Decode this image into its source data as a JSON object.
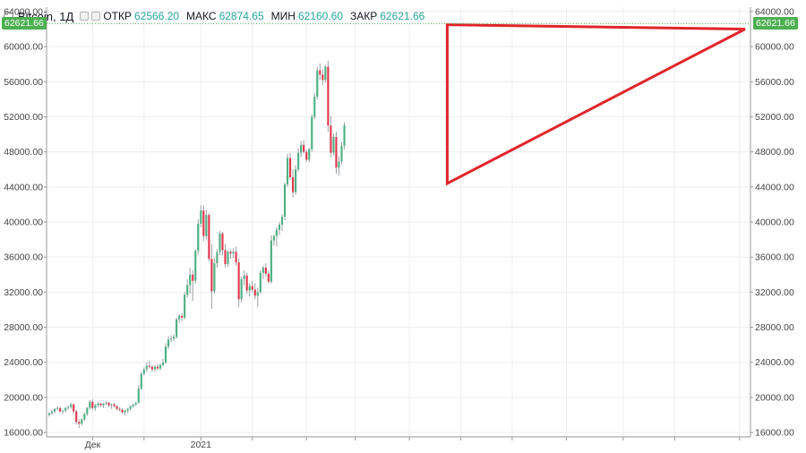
{
  "legend": {
    "symbol": "Bitcoin",
    "interval": "1Д",
    "open_label": "ОТКР",
    "open_value": "62566.20",
    "high_label": "МАКС",
    "high_value": "62874.65",
    "low_label": "МИН",
    "low_value": "62160.60",
    "close_label": "ЗАКР",
    "close_value": "62621.66"
  },
  "last_price_tag": "62621.66",
  "colors": {
    "up": "#4caf82",
    "down": "#e0364a",
    "wick": "#9aa0a6",
    "grid": "#eeeeee",
    "axis": "#999999",
    "triangle": "#e0252b",
    "price_tag": "#4caf50"
  },
  "chart_data": {
    "type": "candlestick",
    "title": "",
    "xlabel": "",
    "ylabel": "",
    "ylim": [
      15500,
      64500
    ],
    "y_ticks": [
      "16000.00",
      "20000.00",
      "24000.00",
      "28000.00",
      "32000.00",
      "36000.00",
      "40000.00",
      "44000.00",
      "48000.00",
      "52000.00",
      "56000.00",
      "60000.00",
      "64000.00"
    ],
    "y_tick_values": [
      16000,
      20000,
      24000,
      28000,
      32000,
      36000,
      40000,
      44000,
      48000,
      52000,
      56000,
      60000,
      64000
    ],
    "x_labels": [
      {
        "text": "Дек",
        "index": 16
      },
      {
        "text": "2021",
        "index": 56
      }
    ],
    "x_ticks_index": [
      16,
      35,
      56,
      75,
      95,
      113,
      133,
      152,
      171,
      191,
      212,
      231,
      255
    ],
    "last_close": 62621.66,
    "grid": true,
    "annotation": {
      "type": "triangle",
      "points": [
        {
          "index": 147,
          "price": 62500
        },
        {
          "index": 147,
          "price": 44400
        },
        {
          "index": 257,
          "price": 62000
        }
      ]
    },
    "candles": [
      [
        18000,
        18300,
        17800,
        18200
      ],
      [
        18200,
        18600,
        18000,
        18400
      ],
      [
        18400,
        18800,
        18200,
        18700
      ],
      [
        18700,
        19000,
        18500,
        18800
      ],
      [
        18800,
        18900,
        18300,
        18400
      ],
      [
        18400,
        18600,
        18100,
        18500
      ],
      [
        18500,
        18900,
        18300,
        18800
      ],
      [
        18800,
        19100,
        18600,
        18900
      ],
      [
        18900,
        19400,
        18700,
        19200
      ],
      [
        19200,
        19300,
        18200,
        18400
      ],
      [
        18400,
        18600,
        16900,
        17200
      ],
      [
        17200,
        17500,
        16500,
        17000
      ],
      [
        17000,
        17600,
        16800,
        17500
      ],
      [
        17500,
        18300,
        17300,
        18100
      ],
      [
        18100,
        18900,
        17900,
        18800
      ],
      [
        18800,
        19700,
        18600,
        19500
      ],
      [
        19500,
        19800,
        18600,
        18800
      ],
      [
        18800,
        19300,
        18500,
        19100
      ],
      [
        19100,
        19500,
        18900,
        19300
      ],
      [
        19300,
        19400,
        18900,
        19100
      ],
      [
        19100,
        19400,
        18800,
        19300
      ],
      [
        19300,
        19600,
        19100,
        19400
      ],
      [
        19400,
        19500,
        18900,
        19100
      ],
      [
        19100,
        19300,
        18700,
        19200
      ],
      [
        19200,
        19400,
        18900,
        19000
      ],
      [
        19000,
        19100,
        18500,
        18700
      ],
      [
        18700,
        18900,
        18400,
        18600
      ],
      [
        18600,
        18800,
        18100,
        18300
      ],
      [
        18300,
        18600,
        17900,
        18500
      ],
      [
        18500,
        18800,
        18200,
        18700
      ],
      [
        18700,
        19100,
        18500,
        19000
      ],
      [
        19000,
        19300,
        18800,
        19200
      ],
      [
        19200,
        19500,
        19000,
        19400
      ],
      [
        19400,
        21400,
        19300,
        21000
      ],
      [
        21000,
        22900,
        20800,
        22700
      ],
      [
        22700,
        23400,
        22500,
        23200
      ],
      [
        23200,
        24000,
        22900,
        23600
      ],
      [
        23600,
        24200,
        23300,
        23500
      ],
      [
        23500,
        23700,
        22900,
        23200
      ],
      [
        23200,
        23700,
        22900,
        23500
      ],
      [
        23500,
        23800,
        23100,
        23300
      ],
      [
        23300,
        23900,
        23100,
        23700
      ],
      [
        23700,
        24400,
        23500,
        24000
      ],
      [
        24000,
        26200,
        23800,
        25800
      ],
      [
        25800,
        27000,
        25500,
        26600
      ],
      [
        26600,
        27100,
        26300,
        26700
      ],
      [
        26700,
        27200,
        26400,
        26900
      ],
      [
        26900,
        29100,
        26700,
        28900
      ],
      [
        28900,
        29500,
        28500,
        29300
      ],
      [
        29300,
        29600,
        28700,
        29100
      ],
      [
        29100,
        32000,
        28900,
        31700
      ],
      [
        31700,
        33500,
        31400,
        32800
      ],
      [
        32800,
        34800,
        31800,
        34000
      ],
      [
        34000,
        34500,
        31000,
        33300
      ],
      [
        33300,
        36900,
        33000,
        36700
      ],
      [
        36700,
        40300,
        36300,
        39800
      ],
      [
        39800,
        41900,
        39400,
        41300
      ],
      [
        41300,
        41900,
        37800,
        38400
      ],
      [
        38400,
        41400,
        38000,
        40800
      ],
      [
        40800,
        41000,
        35500,
        35800
      ],
      [
        35800,
        37500,
        30100,
        32100
      ],
      [
        32100,
        35900,
        31800,
        35300
      ],
      [
        35300,
        36900,
        34800,
        36600
      ],
      [
        36600,
        39000,
        36200,
        38700
      ],
      [
        38700,
        38900,
        36200,
        36800
      ],
      [
        36800,
        37500,
        34800,
        35200
      ],
      [
        35200,
        36800,
        34900,
        36600
      ],
      [
        36600,
        36900,
        35800,
        36400
      ],
      [
        36400,
        37000,
        35900,
        36600
      ],
      [
        36600,
        37200,
        35000,
        35400
      ],
      [
        35400,
        35800,
        30300,
        31200
      ],
      [
        31200,
        33800,
        30800,
        33500
      ],
      [
        33500,
        34500,
        32800,
        33900
      ],
      [
        33900,
        34200,
        31800,
        32200
      ],
      [
        32200,
        33000,
        31500,
        32700
      ],
      [
        32700,
        33300,
        32000,
        32300
      ],
      [
        32300,
        33000,
        31200,
        31600
      ],
      [
        31600,
        32500,
        30300,
        32000
      ],
      [
        32000,
        34500,
        31800,
        34200
      ],
      [
        34200,
        35000,
        33500,
        34800
      ],
      [
        34800,
        35300,
        33800,
        34100
      ],
      [
        34100,
        34400,
        33000,
        33200
      ],
      [
        33200,
        38500,
        33000,
        37900
      ],
      [
        37900,
        38600,
        37300,
        38400
      ],
      [
        38400,
        39400,
        37200,
        39100
      ],
      [
        39100,
        40000,
        38500,
        39700
      ],
      [
        39700,
        40900,
        39000,
        40600
      ],
      [
        40600,
        44500,
        40200,
        44300
      ],
      [
        44300,
        47800,
        44000,
        47300
      ],
      [
        47300,
        47900,
        44800,
        45100
      ],
      [
        45100,
        46000,
        42800,
        43400
      ],
      [
        43400,
        46500,
        43100,
        46000
      ],
      [
        46000,
        48400,
        45700,
        47900
      ],
      [
        47900,
        49200,
        47400,
        48800
      ],
      [
        48800,
        49300,
        47800,
        48000
      ],
      [
        48000,
        48200,
        46800,
        47100
      ],
      [
        47100,
        48500,
        46800,
        48300
      ],
      [
        48300,
        52300,
        48000,
        52000
      ],
      [
        52000,
        54700,
        51700,
        54300
      ],
      [
        54300,
        57700,
        54000,
        57300
      ],
      [
        57300,
        58100,
        56200,
        56800
      ],
      [
        56800,
        57400,
        55600,
        56200
      ],
      [
        56200,
        57900,
        55900,
        57700
      ],
      [
        57700,
        58400,
        50300,
        51000
      ],
      [
        51000,
        52100,
        47400,
        47900
      ],
      [
        47900,
        50100,
        47600,
        49700
      ],
      [
        49700,
        50300,
        45500,
        46200
      ],
      [
        46200,
        47500,
        45300,
        46900
      ],
      [
        46900,
        49100,
        46600,
        48700
      ],
      [
        48700,
        51400,
        48300,
        51000
      ]
    ]
  }
}
